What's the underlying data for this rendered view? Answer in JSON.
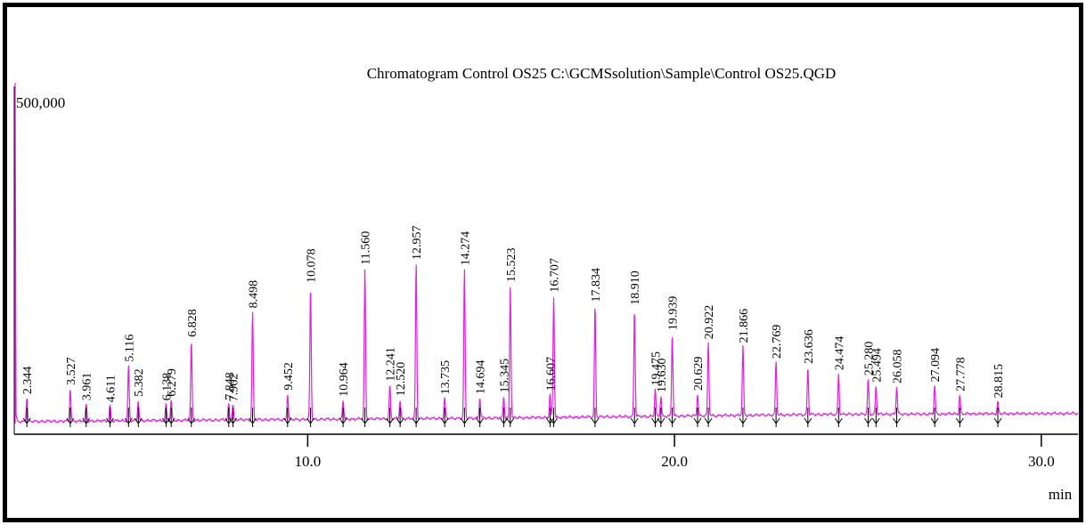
{
  "chart_data": {
    "type": "line",
    "title": "Chromatogram Control OS25 C:\\GCMSsolution\\Sample\\Control OS25.QGD",
    "xlabel": "min",
    "ylabel": "",
    "y_max_label": "500,000",
    "xlim": [
      2.0,
      31.0
    ],
    "ylim": [
      0,
      500000
    ],
    "x_ticks": [
      {
        "value": 10.0,
        "label": "10.0"
      },
      {
        "value": 20.0,
        "label": "20.0"
      },
      {
        "value": 30.0,
        "label": "30.0"
      }
    ],
    "line_color": "#e020e0",
    "series": [
      {
        "values_note": "",
        "peaks": [
          {
            "rt": 2.344,
            "label": "2.344",
            "intensity": 35000
          },
          {
            "rt": 3.527,
            "label": "3.527",
            "intensity": 48000
          },
          {
            "rt": 3.961,
            "label": "3.961",
            "intensity": 25000
          },
          {
            "rt": 4.611,
            "label": "4.611",
            "intensity": 22000
          },
          {
            "rt": 5.116,
            "label": "5.116",
            "intensity": 82000
          },
          {
            "rt": 5.382,
            "label": "5.382",
            "intensity": 30000
          },
          {
            "rt": 6.138,
            "label": "6.138",
            "intensity": 24000
          },
          {
            "rt": 6.279,
            "label": "6.279",
            "intensity": 30000
          },
          {
            "rt": 6.828,
            "label": "6.828",
            "intensity": 118000
          },
          {
            "rt": 7.848,
            "label": "7.848",
            "intensity": 24000
          },
          {
            "rt": 7.962,
            "label": "7.962",
            "intensity": 22000
          },
          {
            "rt": 8.498,
            "label": "8.498",
            "intensity": 160000
          },
          {
            "rt": 9.452,
            "label": "9.452",
            "intensity": 38000
          },
          {
            "rt": 10.078,
            "label": "10.078",
            "intensity": 197000
          },
          {
            "rt": 10.964,
            "label": "10.964",
            "intensity": 28000
          },
          {
            "rt": 11.56,
            "label": "11.560",
            "intensity": 223000
          },
          {
            "rt": 12.241,
            "label": "12.241",
            "intensity": 50000
          },
          {
            "rt": 12.52,
            "label": "12.520",
            "intensity": 28000
          },
          {
            "rt": 12.957,
            "label": "12.957",
            "intensity": 230000
          },
          {
            "rt": 13.735,
            "label": "13.735",
            "intensity": 30000
          },
          {
            "rt": 14.274,
            "label": "14.274",
            "intensity": 221000
          },
          {
            "rt": 14.694,
            "label": "14.694",
            "intensity": 30000
          },
          {
            "rt": 15.345,
            "label": "15.345",
            "intensity": 32000
          },
          {
            "rt": 15.523,
            "label": "15.523",
            "intensity": 196000
          },
          {
            "rt": 16.607,
            "label": "16.607",
            "intensity": 34000
          },
          {
            "rt": 16.707,
            "label": "16.707",
            "intensity": 180000
          },
          {
            "rt": 17.834,
            "label": "17.834",
            "intensity": 165000
          },
          {
            "rt": 18.91,
            "label": "18.910",
            "intensity": 160000
          },
          {
            "rt": 19.475,
            "label": "19.475",
            "intensity": 40000
          },
          {
            "rt": 19.63,
            "label": "19.630",
            "intensity": 30000
          },
          {
            "rt": 19.939,
            "label": "19.939",
            "intensity": 122000
          },
          {
            "rt": 20.629,
            "label": "20.629",
            "intensity": 32000
          },
          {
            "rt": 20.922,
            "label": "20.922",
            "intensity": 108000
          },
          {
            "rt": 21.866,
            "label": "21.866",
            "intensity": 102000
          },
          {
            "rt": 22.769,
            "label": "22.769",
            "intensity": 78000
          },
          {
            "rt": 23.636,
            "label": "23.636",
            "intensity": 70000
          },
          {
            "rt": 24.474,
            "label": "24.474",
            "intensity": 60000
          },
          {
            "rt": 25.28,
            "label": "25.280",
            "intensity": 52000
          },
          {
            "rt": 25.494,
            "label": "25.494",
            "intensity": 42000
          },
          {
            "rt": 26.058,
            "label": "26.058",
            "intensity": 40000
          },
          {
            "rt": 27.094,
            "label": "27.094",
            "intensity": 42000
          },
          {
            "rt": 27.778,
            "label": "27.778",
            "intensity": 28000
          },
          {
            "rt": 28.815,
            "label": "28.815",
            "intensity": 18000
          }
        ]
      }
    ]
  }
}
